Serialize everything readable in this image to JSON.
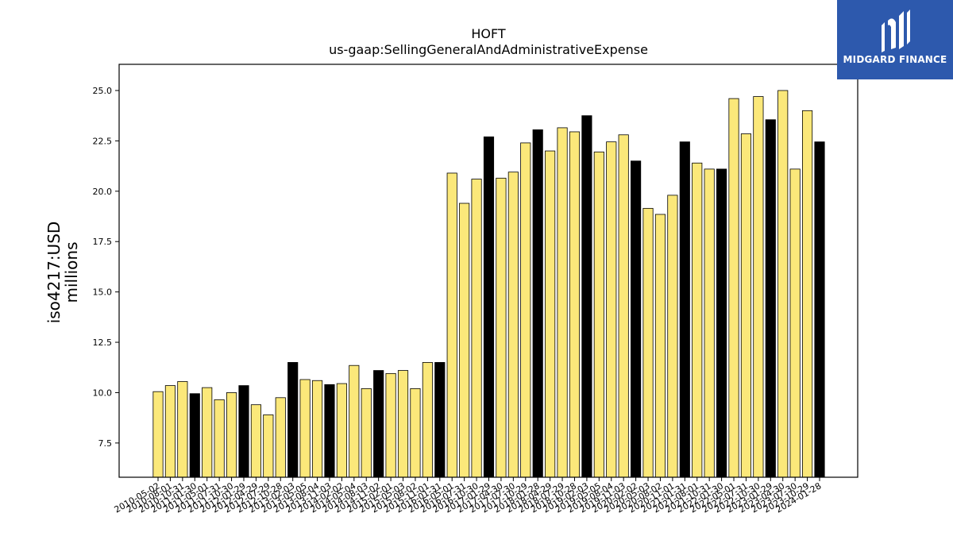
{
  "logo": {
    "text": "MIDGARD FINANCE",
    "background": "#2d59ad"
  },
  "colors": {
    "bar_light": "#fbe87a",
    "bar_dark": "#000000",
    "edge": "#000000"
  },
  "chart_data": {
    "type": "bar",
    "title": "HOFT",
    "subtitle": "us-gaap:SellingGeneralAndAdministrativeExpense",
    "ylabel": "iso4217:USD",
    "ylabel2": "millions",
    "ylim": [
      5.8,
      26.3
    ],
    "yticks": [
      "7.5",
      "10.0",
      "12.5",
      "15.0",
      "17.5",
      "20.0",
      "22.5",
      "25.0"
    ],
    "categories": [
      "2010-05-02",
      "2010-08-01",
      "2010-10-31",
      "2011-01-30",
      "2011-05-01",
      "2011-07-31",
      "2011-10-30",
      "2012-01-29",
      "2012-04-29",
      "2012-07-29",
      "2012-10-28",
      "2013-02-03",
      "2013-05-05",
      "2013-08-04",
      "2013-11-03",
      "2014-02-02",
      "2014-05-04",
      "2014-08-03",
      "2014-11-02",
      "2015-02-01",
      "2015-05-03",
      "2015-08-02",
      "2015-11-01",
      "2016-01-31",
      "2016-05-01",
      "2016-07-31",
      "2016-10-30",
      "2017-01-29",
      "2017-04-30",
      "2017-07-30",
      "2017-10-29",
      "2018-01-28",
      "2018-04-29",
      "2018-07-29",
      "2018-10-28",
      "2019-02-03",
      "2019-05-05",
      "2019-08-04",
      "2019-11-03",
      "2020-02-02",
      "2020-05-03",
      "2020-08-02",
      "2020-11-01",
      "2021-01-31",
      "2021-08-01",
      "2021-10-31",
      "2022-01-30",
      "2022-05-01",
      "2022-07-31",
      "2022-10-30",
      "2023-01-29",
      "2023-04-30",
      "2023-07-30",
      "2023-10-29",
      "2024-01-28"
    ],
    "values": [
      10.05,
      10.35,
      10.55,
      9.95,
      10.25,
      9.65,
      10.0,
      10.35,
      9.4,
      8.9,
      9.75,
      11.5,
      10.65,
      10.6,
      10.4,
      10.45,
      11.35,
      10.2,
      11.1,
      10.95,
      11.1,
      10.2,
      11.5,
      11.5,
      20.9,
      19.4,
      20.6,
      22.7,
      20.65,
      20.95,
      22.4,
      23.05,
      22.0,
      23.15,
      22.95,
      23.75,
      21.95,
      22.45,
      22.8,
      21.5,
      19.15,
      18.85,
      19.8,
      22.45,
      21.4,
      21.1,
      21.1,
      24.6,
      22.85,
      24.7,
      23.55,
      25.0,
      21.1,
      24.0,
      22.45
    ],
    "dark": [
      false,
      false,
      false,
      true,
      false,
      false,
      false,
      true,
      false,
      false,
      false,
      true,
      false,
      false,
      true,
      false,
      false,
      false,
      true,
      false,
      false,
      false,
      false,
      true,
      false,
      false,
      false,
      true,
      false,
      false,
      false,
      true,
      false,
      false,
      false,
      true,
      false,
      false,
      false,
      true,
      false,
      false,
      false,
      true,
      false,
      false,
      true,
      false,
      false,
      false,
      true,
      false,
      false,
      false,
      true
    ]
  }
}
